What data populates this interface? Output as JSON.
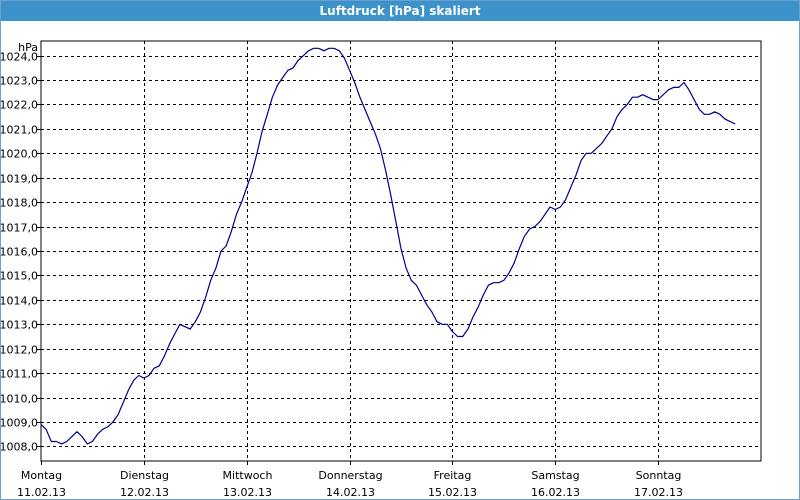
{
  "window": {
    "title": "Luftdruck [hPa] skaliert"
  },
  "chart_data": {
    "type": "line",
    "title": "Luftdruck [hPa] skaliert",
    "ylabel": "hPa",
    "xlabel": "",
    "ylim": [
      1007.4,
      1024.6
    ],
    "xlim": [
      0,
      7
    ],
    "grid": true,
    "y_ticks": [
      1008.0,
      1009.0,
      1010.0,
      1011.0,
      1012.0,
      1013.0,
      1014.0,
      1015.0,
      1016.0,
      1017.0,
      1018.0,
      1019.0,
      1020.0,
      1021.0,
      1022.0,
      1023.0,
      1024.0
    ],
    "y_tick_labels": [
      "1008,0",
      "1009,0",
      "1010,0",
      "1011,0",
      "1012,0",
      "1013,0",
      "1014,0",
      "1015,0",
      "1016,0",
      "1017,0",
      "1018,0",
      "1019,0",
      "1020,0",
      "1021,0",
      "1022,0",
      "1023,0",
      "1024,0"
    ],
    "x_ticks": [
      {
        "day": "Montag",
        "date": "11.02.13"
      },
      {
        "day": "Dienstag",
        "date": "12.02.13"
      },
      {
        "day": "Mittwoch",
        "date": "13.02.13"
      },
      {
        "day": "Donnerstag",
        "date": "14.02.13"
      },
      {
        "day": "Freitag",
        "date": "15.02.13"
      },
      {
        "day": "Samstag",
        "date": "16.02.13"
      },
      {
        "day": "Sonntag",
        "date": "17.02.13"
      }
    ],
    "series": [
      {
        "color": "#00008b",
        "points": [
          [
            0.0,
            1008.9
          ],
          [
            0.05,
            1008.7
          ],
          [
            0.1,
            1008.2
          ],
          [
            0.15,
            1008.2
          ],
          [
            0.2,
            1008.1
          ],
          [
            0.25,
            1008.2
          ],
          [
            0.3,
            1008.4
          ],
          [
            0.35,
            1008.6
          ],
          [
            0.4,
            1008.4
          ],
          [
            0.45,
            1008.1
          ],
          [
            0.5,
            1008.2
          ],
          [
            0.55,
            1008.5
          ],
          [
            0.6,
            1008.7
          ],
          [
            0.65,
            1008.8
          ],
          [
            0.7,
            1009.0
          ],
          [
            0.75,
            1009.3
          ],
          [
            0.8,
            1009.8
          ],
          [
            0.85,
            1010.3
          ],
          [
            0.9,
            1010.7
          ],
          [
            0.95,
            1010.9
          ],
          [
            1.0,
            1010.8
          ],
          [
            1.05,
            1010.9
          ],
          [
            1.1,
            1011.2
          ],
          [
            1.15,
            1011.3
          ],
          [
            1.2,
            1011.7
          ],
          [
            1.25,
            1012.2
          ],
          [
            1.3,
            1012.6
          ],
          [
            1.35,
            1013.0
          ],
          [
            1.4,
            1012.9
          ],
          [
            1.45,
            1012.8
          ],
          [
            1.5,
            1013.1
          ],
          [
            1.55,
            1013.5
          ],
          [
            1.6,
            1014.1
          ],
          [
            1.65,
            1014.8
          ],
          [
            1.7,
            1015.3
          ],
          [
            1.75,
            1016.0
          ],
          [
            1.8,
            1016.2
          ],
          [
            1.85,
            1016.8
          ],
          [
            1.9,
            1017.5
          ],
          [
            1.95,
            1018.0
          ],
          [
            2.0,
            1018.6
          ],
          [
            2.05,
            1019.2
          ],
          [
            2.1,
            1020.0
          ],
          [
            2.15,
            1020.9
          ],
          [
            2.2,
            1021.6
          ],
          [
            2.25,
            1022.3
          ],
          [
            2.3,
            1022.8
          ],
          [
            2.35,
            1023.1
          ],
          [
            2.4,
            1023.4
          ],
          [
            2.45,
            1023.5
          ],
          [
            2.5,
            1023.8
          ],
          [
            2.55,
            1024.0
          ],
          [
            2.6,
            1024.2
          ],
          [
            2.65,
            1024.3
          ],
          [
            2.7,
            1024.3
          ],
          [
            2.75,
            1024.2
          ],
          [
            2.8,
            1024.3
          ],
          [
            2.85,
            1024.3
          ],
          [
            2.9,
            1024.2
          ],
          [
            2.95,
            1023.9
          ],
          [
            3.0,
            1023.4
          ],
          [
            3.05,
            1022.9
          ],
          [
            3.1,
            1022.3
          ],
          [
            3.15,
            1021.8
          ],
          [
            3.2,
            1021.3
          ],
          [
            3.25,
            1020.8
          ],
          [
            3.3,
            1020.2
          ],
          [
            3.35,
            1019.3
          ],
          [
            3.4,
            1018.3
          ],
          [
            3.45,
            1017.2
          ],
          [
            3.5,
            1016.1
          ],
          [
            3.55,
            1015.3
          ],
          [
            3.6,
            1014.8
          ],
          [
            3.65,
            1014.6
          ],
          [
            3.7,
            1014.2
          ],
          [
            3.75,
            1013.8
          ],
          [
            3.8,
            1013.5
          ],
          [
            3.85,
            1013.1
          ],
          [
            3.9,
            1013.0
          ],
          [
            3.95,
            1013.0
          ],
          [
            4.0,
            1012.7
          ],
          [
            4.05,
            1012.5
          ],
          [
            4.1,
            1012.5
          ],
          [
            4.15,
            1012.8
          ],
          [
            4.2,
            1013.3
          ],
          [
            4.25,
            1013.7
          ],
          [
            4.3,
            1014.2
          ],
          [
            4.35,
            1014.6
          ],
          [
            4.4,
            1014.7
          ],
          [
            4.45,
            1014.7
          ],
          [
            4.5,
            1014.8
          ],
          [
            4.55,
            1015.1
          ],
          [
            4.6,
            1015.5
          ],
          [
            4.65,
            1016.1
          ],
          [
            4.7,
            1016.6
          ],
          [
            4.75,
            1016.9
          ],
          [
            4.8,
            1017.0
          ],
          [
            4.85,
            1017.2
          ],
          [
            4.9,
            1017.5
          ],
          [
            4.95,
            1017.8
          ],
          [
            5.0,
            1017.7
          ],
          [
            5.05,
            1017.8
          ],
          [
            5.1,
            1018.1
          ],
          [
            5.15,
            1018.6
          ],
          [
            5.2,
            1019.1
          ],
          [
            5.25,
            1019.7
          ],
          [
            5.3,
            1020.0
          ],
          [
            5.35,
            1020.0
          ],
          [
            5.4,
            1020.2
          ],
          [
            5.45,
            1020.4
          ],
          [
            5.5,
            1020.7
          ],
          [
            5.55,
            1021.0
          ],
          [
            5.6,
            1021.5
          ],
          [
            5.65,
            1021.8
          ],
          [
            5.7,
            1022.0
          ],
          [
            5.75,
            1022.3
          ],
          [
            5.8,
            1022.3
          ],
          [
            5.85,
            1022.4
          ],
          [
            5.9,
            1022.3
          ],
          [
            5.95,
            1022.2
          ],
          [
            6.0,
            1022.2
          ],
          [
            6.05,
            1022.4
          ],
          [
            6.1,
            1022.6
          ],
          [
            6.15,
            1022.7
          ],
          [
            6.2,
            1022.7
          ],
          [
            6.25,
            1022.9
          ],
          [
            6.3,
            1022.6
          ],
          [
            6.35,
            1022.2
          ],
          [
            6.4,
            1021.8
          ],
          [
            6.45,
            1021.6
          ],
          [
            6.5,
            1021.6
          ],
          [
            6.55,
            1021.7
          ],
          [
            6.6,
            1021.6
          ],
          [
            6.65,
            1021.4
          ],
          [
            6.7,
            1021.3
          ],
          [
            6.75,
            1021.2
          ]
        ]
      }
    ]
  }
}
